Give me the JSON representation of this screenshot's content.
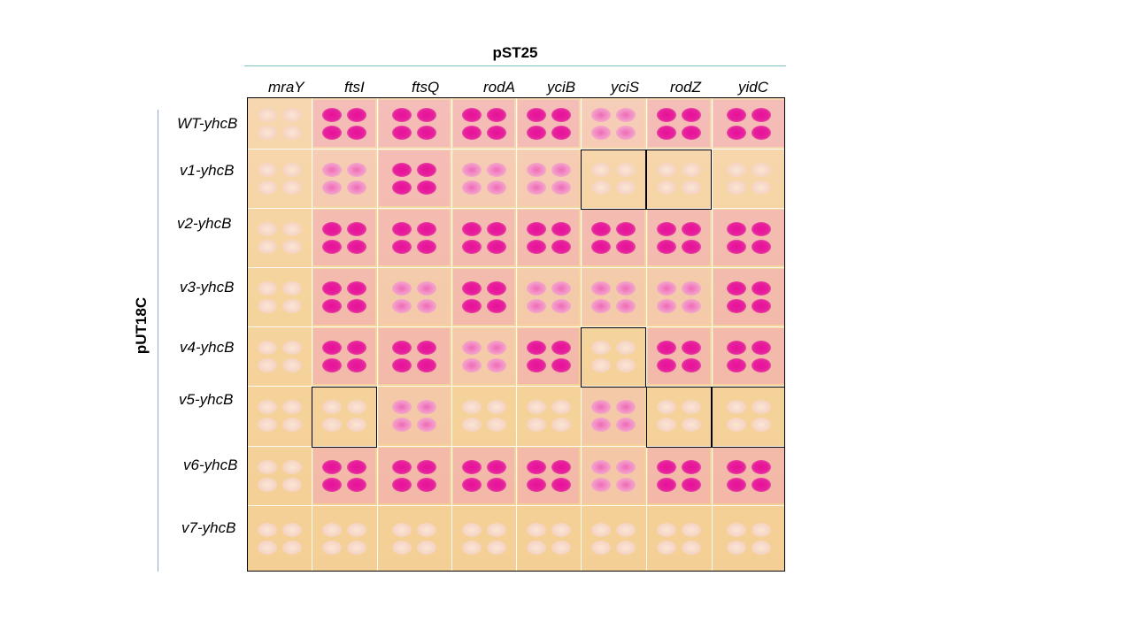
{
  "header": {
    "title": "pST25"
  },
  "side": {
    "title": "pUT18C"
  },
  "columns": [
    "mraY",
    "ftsI",
    "ftsQ",
    "rodA",
    "yciB",
    "yciS",
    "rodZ",
    "yidC"
  ],
  "rows": [
    "WT-yhcB",
    "v1-yhcB",
    "v2-yhcB",
    "v3-yhcB",
    "v4-yhcB",
    "v5-yhcB",
    "v6-yhcB",
    "v7-yhcB"
  ],
  "interactions": [
    [
      "neg",
      "pos",
      "pos",
      "pos",
      "pos",
      "weak",
      "pos",
      "pos"
    ],
    [
      "neg",
      "weak",
      "pos",
      "weak",
      "weak",
      "neg",
      "neg",
      "neg"
    ],
    [
      "neg",
      "pos",
      "pos",
      "pos",
      "pos",
      "pos",
      "pos",
      "pos"
    ],
    [
      "neg",
      "pos",
      "weak",
      "pos",
      "weak",
      "weak",
      "weak",
      "pos"
    ],
    [
      "neg",
      "pos",
      "pos",
      "weak",
      "pos",
      "neg",
      "pos",
      "pos"
    ],
    [
      "neg",
      "neg",
      "weak",
      "neg",
      "neg",
      "weak",
      "neg",
      "neg"
    ],
    [
      "neg",
      "pos",
      "pos",
      "pos",
      "pos",
      "weak",
      "pos",
      "pos"
    ],
    [
      "neg",
      "neg",
      "neg",
      "neg",
      "neg",
      "neg",
      "neg",
      "neg"
    ]
  ],
  "highlighted_cells": [
    {
      "row": "v1-yhcB",
      "column": "yciS"
    },
    {
      "row": "v1-yhcB",
      "column": "rodZ"
    },
    {
      "row": "v4-yhcB",
      "column": "yciS"
    },
    {
      "row": "v5-yhcB",
      "column": "ftsI"
    },
    {
      "row": "v5-yhcB",
      "column": "rodZ"
    },
    {
      "row": "v5-yhcB",
      "column": "yidC"
    }
  ],
  "colors": {
    "positive": "#e6219c",
    "negative": "#f6d5c4",
    "plate": "#f5d49d",
    "rule": "#7fbfc0"
  }
}
